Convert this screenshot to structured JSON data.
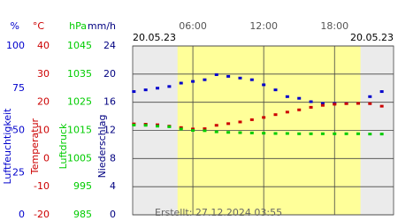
{
  "chart_data": {
    "type": "scatter",
    "date_left": "20.05.23",
    "date_right": "20.05.23",
    "footer": "Erstellt: 27.12.2024 03:55",
    "xlim": [
      0.9,
      23.0
    ],
    "xticks": [
      {
        "value": 6,
        "label": "06:00"
      },
      {
        "value": 12,
        "label": "12:00"
      },
      {
        "value": 18,
        "label": "18:00"
      }
    ],
    "daylight": [
      4.7,
      20.2
    ],
    "x": [
      1,
      2,
      3,
      4,
      5,
      6,
      7,
      8,
      9,
      10,
      11,
      12,
      13,
      14,
      15,
      16,
      17,
      18,
      19,
      20,
      21,
      22
    ],
    "axes": [
      {
        "unit": "%",
        "title": "Luftfeuchtigkeit",
        "color": "#0000cc",
        "ylim": [
          0,
          100
        ],
        "yticks": [
          0,
          25,
          50,
          75,
          100
        ],
        "values": [
          73,
          74,
          75,
          76,
          78,
          79,
          80,
          83,
          82,
          81,
          80,
          77,
          74,
          70,
          69,
          67,
          66,
          66,
          66,
          66,
          70,
          73
        ]
      },
      {
        "unit": "°C",
        "title": "Temperatur",
        "color": "#cc0000",
        "ylim": [
          -20,
          40
        ],
        "yticks": [
          -20,
          -10,
          0,
          10,
          20,
          30,
          40
        ],
        "values": [
          12.3,
          12.2,
          12.0,
          11.5,
          11.0,
          10.5,
          10.6,
          11.8,
          12.4,
          13.0,
          13.8,
          14.6,
          15.6,
          16.5,
          17.3,
          18.2,
          18.9,
          19.3,
          19.5,
          19.6,
          19.5,
          18.6
        ]
      },
      {
        "unit": "hPa",
        "title": "Luftdruck",
        "color": "#00cc00",
        "ylim": [
          985,
          1045
        ],
        "yticks": [
          985,
          995,
          1005,
          1015,
          1025,
          1035,
          1045
        ],
        "values": [
          1016.9,
          1016.8,
          1016.5,
          1016.3,
          1015.5,
          1015.0,
          1014.9,
          1014.5,
          1014.3,
          1014.2,
          1014.1,
          1014.0,
          1013.9,
          1013.9,
          1013.8,
          1013.8,
          1013.8,
          1013.8,
          1013.8,
          1013.8,
          1013.7,
          1013.7
        ]
      },
      {
        "unit": "mm/h",
        "title": "Niederschlag",
        "color": "#000080",
        "ylim": [
          0,
          24
        ],
        "yticks": [
          0,
          4,
          8,
          12,
          16,
          20,
          24
        ]
      }
    ]
  }
}
